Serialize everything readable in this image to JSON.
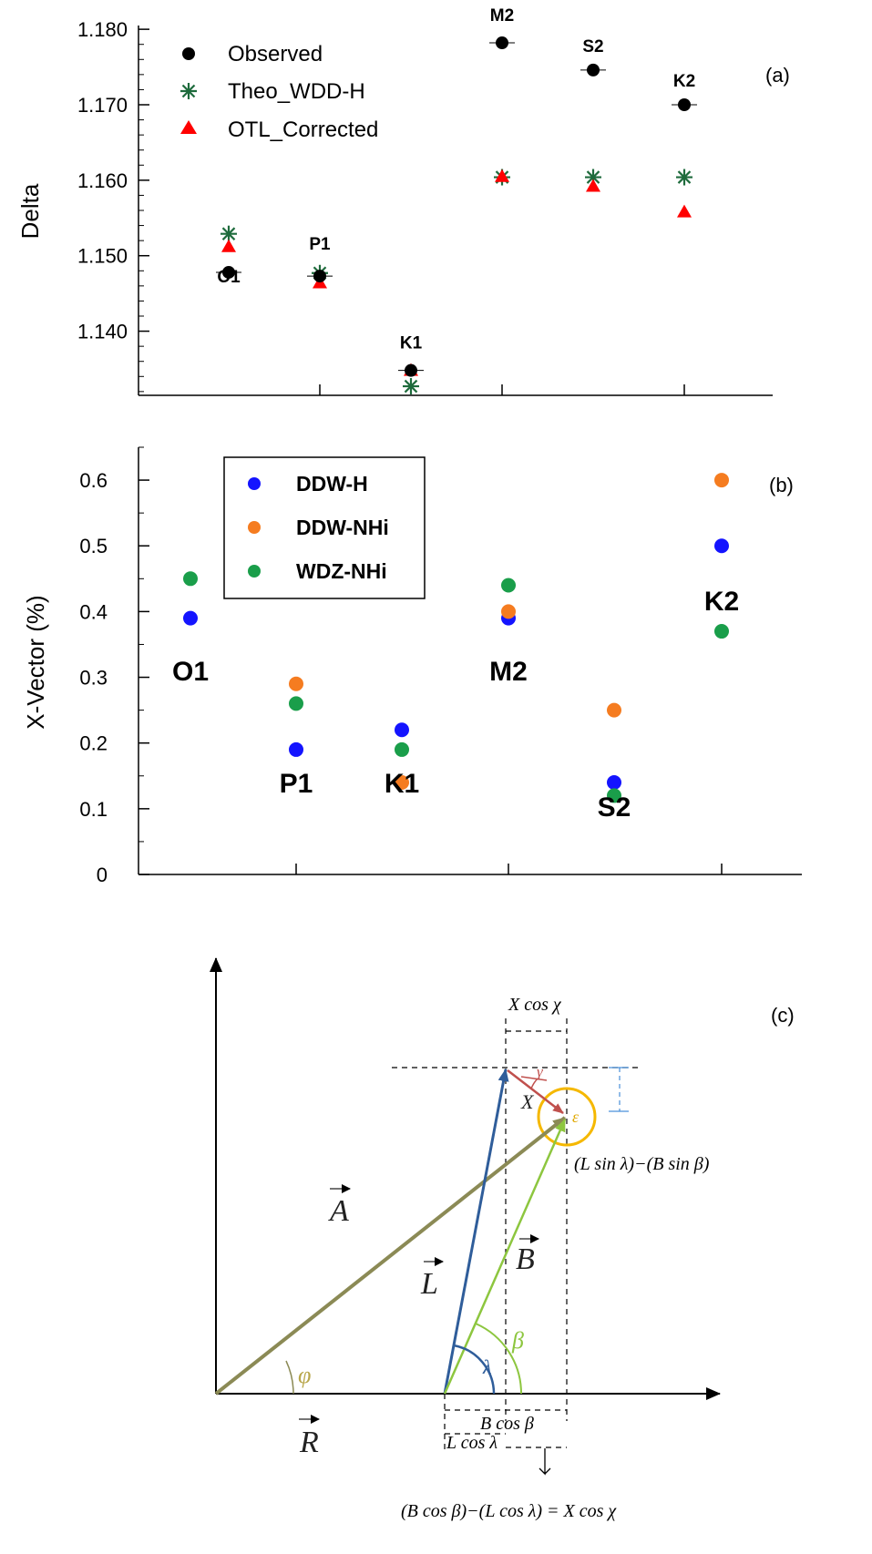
{
  "chart_data": [
    {
      "type": "scatter",
      "panel": "(a)",
      "ylabel": "Delta",
      "categories": [
        "O1",
        "P1",
        "K1",
        "M2",
        "S2",
        "K2"
      ],
      "ylim": [
        1.1315,
        1.1805
      ],
      "yticks": [
        "1.140",
        "1.150",
        "1.160",
        "1.170",
        "1.180"
      ],
      "ytick_values": [
        1.14,
        1.15,
        1.16,
        1.17,
        1.18
      ],
      "legend_position": "top-left",
      "series": [
        {
          "name": "Observed",
          "color": "#000000",
          "marker": "circle",
          "values": [
            1.1478,
            1.1473,
            1.1348,
            1.1782,
            1.1746,
            1.17
          ]
        },
        {
          "name": "Theo_WDD-H",
          "color": "#1e6b3c",
          "marker": "star",
          "values": [
            1.1529,
            1.1477,
            1.1327,
            1.1604,
            1.1604,
            1.1604
          ]
        },
        {
          "name": "OTL_Corrected",
          "color": "#ff0000",
          "marker": "triangle",
          "values": [
            1.1512,
            1.1464,
            1.1348,
            1.1605,
            1.1592,
            1.1558
          ]
        }
      ]
    },
    {
      "type": "scatter",
      "panel": "(b)",
      "ylabel": "X-Vector (%)",
      "categories": [
        "O1",
        "P1",
        "K1",
        "M2",
        "S2",
        "K2"
      ],
      "ylim": [
        0,
        0.65
      ],
      "yticks": [
        "0",
        "0.1",
        "0.2",
        "0.3",
        "0.4",
        "0.5",
        "0.6"
      ],
      "ytick_values": [
        0,
        0.1,
        0.2,
        0.3,
        0.4,
        0.5,
        0.6
      ],
      "legend_position": "top-left",
      "series": [
        {
          "name": "DDW-H",
          "color": "#1414ff",
          "marker": "circle",
          "values": [
            0.39,
            0.19,
            0.22,
            0.39,
            0.14,
            0.5
          ]
        },
        {
          "name": "DDW-NHi",
          "color": "#f57c20",
          "marker": "circle",
          "values": [
            null,
            0.29,
            0.14,
            0.4,
            0.25,
            0.6
          ]
        },
        {
          "name": "WDZ-NHi",
          "color": "#1a9e4a",
          "marker": "circle",
          "values": [
            0.45,
            0.26,
            0.19,
            0.44,
            0.12,
            0.37
          ]
        }
      ]
    }
  ],
  "diagram": {
    "panel": "(c)",
    "labels": {
      "A": "A",
      "L": "L",
      "B": "B",
      "R": "R",
      "X": "X",
      "phi": "φ",
      "lambda": "λ",
      "beta": "β",
      "gamma": "γ",
      "epsilon": "ε",
      "x_cos_chi": "X cos χ",
      "b_cos_beta": "B cos β",
      "l_cos_lambda": "L cos λ",
      "sin_expression": "(L sin λ)−(B sin β)",
      "cos_expression": "(B cos β)−(L cos λ) = X cos χ"
    },
    "colors": {
      "A": "#8b8a55",
      "L": "#2f5d9a",
      "B": "#8dc63f",
      "X": "#c0504d",
      "circle": "#f5b800"
    }
  }
}
